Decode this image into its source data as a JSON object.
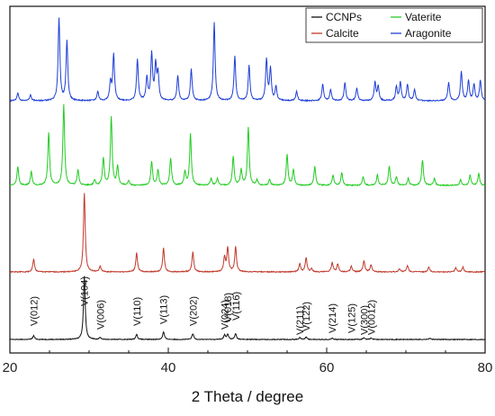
{
  "chart_data": {
    "type": "line",
    "xlabel": "2 Theta / degree",
    "xlim": [
      20,
      80
    ],
    "xticks": [
      20,
      40,
      60,
      80
    ],
    "ylabel": "",
    "grid": false,
    "legend": {
      "position": "top-right",
      "entries": [
        {
          "name": "CCNPs",
          "color": "#111111"
        },
        {
          "name": "Vaterite",
          "color": "#22cc22"
        },
        {
          "name": "Calcite",
          "color": "#c0392b"
        },
        {
          "name": "Aragonite",
          "color": "#1f3fd6"
        }
      ]
    },
    "series": [
      {
        "name": "CCNPs",
        "color": "#111111",
        "baseline": 0.0,
        "peaks": [
          [
            23.0,
            0.06
          ],
          [
            29.4,
            1.0
          ],
          [
            31.4,
            0.03
          ],
          [
            36.0,
            0.08
          ],
          [
            39.4,
            0.12
          ],
          [
            43.1,
            0.09
          ],
          [
            47.1,
            0.07
          ],
          [
            47.5,
            0.08
          ],
          [
            48.5,
            0.09
          ],
          [
            56.6,
            0.03
          ],
          [
            57.4,
            0.04
          ],
          [
            60.7,
            0.02
          ],
          [
            64.7,
            0.03
          ],
          [
            65.6,
            0.02
          ],
          [
            73.0,
            0.02
          ]
        ]
      },
      {
        "name": "Calcite",
        "color": "#c0392b",
        "baseline": 0.0,
        "peaks": [
          [
            23.0,
            0.16
          ],
          [
            29.4,
            1.0
          ],
          [
            31.4,
            0.07
          ],
          [
            36.0,
            0.24
          ],
          [
            39.4,
            0.3
          ],
          [
            43.1,
            0.25
          ],
          [
            47.1,
            0.18
          ],
          [
            47.5,
            0.3
          ],
          [
            48.5,
            0.32
          ],
          [
            56.6,
            0.1
          ],
          [
            57.4,
            0.18
          ],
          [
            58.1,
            0.04
          ],
          [
            60.7,
            0.12
          ],
          [
            61.4,
            0.1
          ],
          [
            63.1,
            0.07
          ],
          [
            64.7,
            0.14
          ],
          [
            65.6,
            0.09
          ],
          [
            69.2,
            0.04
          ],
          [
            70.2,
            0.08
          ],
          [
            72.9,
            0.06
          ],
          [
            76.3,
            0.05
          ],
          [
            77.2,
            0.06
          ]
        ]
      },
      {
        "name": "Vaterite",
        "color": "#22cc22",
        "baseline": 0.0,
        "peaks": [
          [
            21.0,
            0.22
          ],
          [
            22.7,
            0.16
          ],
          [
            24.9,
            0.62
          ],
          [
            26.8,
            0.95
          ],
          [
            28.6,
            0.18
          ],
          [
            30.7,
            0.06
          ],
          [
            31.8,
            0.32
          ],
          [
            32.8,
            0.8
          ],
          [
            33.6,
            0.22
          ],
          [
            35.0,
            0.05
          ],
          [
            37.9,
            0.28
          ],
          [
            38.7,
            0.18
          ],
          [
            40.3,
            0.32
          ],
          [
            42.1,
            0.16
          ],
          [
            42.8,
            0.6
          ],
          [
            45.4,
            0.08
          ],
          [
            46.2,
            0.08
          ],
          [
            48.2,
            0.34
          ],
          [
            49.2,
            0.18
          ],
          [
            50.1,
            0.68
          ],
          [
            51.2,
            0.06
          ],
          [
            52.8,
            0.07
          ],
          [
            55.0,
            0.36
          ],
          [
            55.8,
            0.18
          ],
          [
            58.5,
            0.22
          ],
          [
            60.8,
            0.12
          ],
          [
            61.9,
            0.15
          ],
          [
            64.6,
            0.1
          ],
          [
            66.4,
            0.12
          ],
          [
            67.9,
            0.23
          ],
          [
            68.8,
            0.1
          ],
          [
            70.3,
            0.08
          ],
          [
            72.1,
            0.3
          ],
          [
            73.6,
            0.08
          ],
          [
            76.9,
            0.07
          ],
          [
            78.1,
            0.12
          ],
          [
            79.2,
            0.14
          ]
        ]
      },
      {
        "name": "Aragonite",
        "color": "#1f3fd6",
        "baseline": 0.0,
        "peaks": [
          [
            21.0,
            0.08
          ],
          [
            22.6,
            0.06
          ],
          [
            26.2,
            0.9
          ],
          [
            27.2,
            0.65
          ],
          [
            31.1,
            0.1
          ],
          [
            32.7,
            0.2
          ],
          [
            33.1,
            0.5
          ],
          [
            36.1,
            0.45
          ],
          [
            37.3,
            0.25
          ],
          [
            37.9,
            0.5
          ],
          [
            38.4,
            0.38
          ],
          [
            38.7,
            0.28
          ],
          [
            41.2,
            0.27
          ],
          [
            42.9,
            0.34
          ],
          [
            45.8,
            0.85
          ],
          [
            48.4,
            0.48
          ],
          [
            50.2,
            0.38
          ],
          [
            52.4,
            0.45
          ],
          [
            52.9,
            0.35
          ],
          [
            53.6,
            0.15
          ],
          [
            56.2,
            0.1
          ],
          [
            59.5,
            0.18
          ],
          [
            60.5,
            0.12
          ],
          [
            62.3,
            0.2
          ],
          [
            63.8,
            0.14
          ],
          [
            66.1,
            0.2
          ],
          [
            66.5,
            0.15
          ],
          [
            68.8,
            0.15
          ],
          [
            69.3,
            0.2
          ],
          [
            70.2,
            0.18
          ],
          [
            71.1,
            0.12
          ],
          [
            75.4,
            0.2
          ],
          [
            77.0,
            0.32
          ],
          [
            77.9,
            0.22
          ],
          [
            78.6,
            0.18
          ],
          [
            79.4,
            0.22
          ]
        ]
      }
    ],
    "annotations": [
      {
        "text": "V(012)",
        "x": 23.0
      },
      {
        "text": "V(104)",
        "x": 29.4
      },
      {
        "text": "V(006)",
        "x": 31.4
      },
      {
        "text": "V(110)",
        "x": 36.0
      },
      {
        "text": "V(113)",
        "x": 39.4
      },
      {
        "text": "V(202)",
        "x": 43.1
      },
      {
        "text": "V(024)",
        "x": 47.1
      },
      {
        "text": "V(018)",
        "x": 47.5
      },
      {
        "text": "V(116)",
        "x": 48.5
      },
      {
        "text": "V(211)",
        "x": 56.6
      },
      {
        "text": "V(122)",
        "x": 57.4
      },
      {
        "text": "V(214)",
        "x": 60.7
      },
      {
        "text": "V(125)",
        "x": 63.1
      },
      {
        "text": "V(300)",
        "x": 64.7
      },
      {
        "text": "V(0012)",
        "x": 65.6
      }
    ]
  }
}
